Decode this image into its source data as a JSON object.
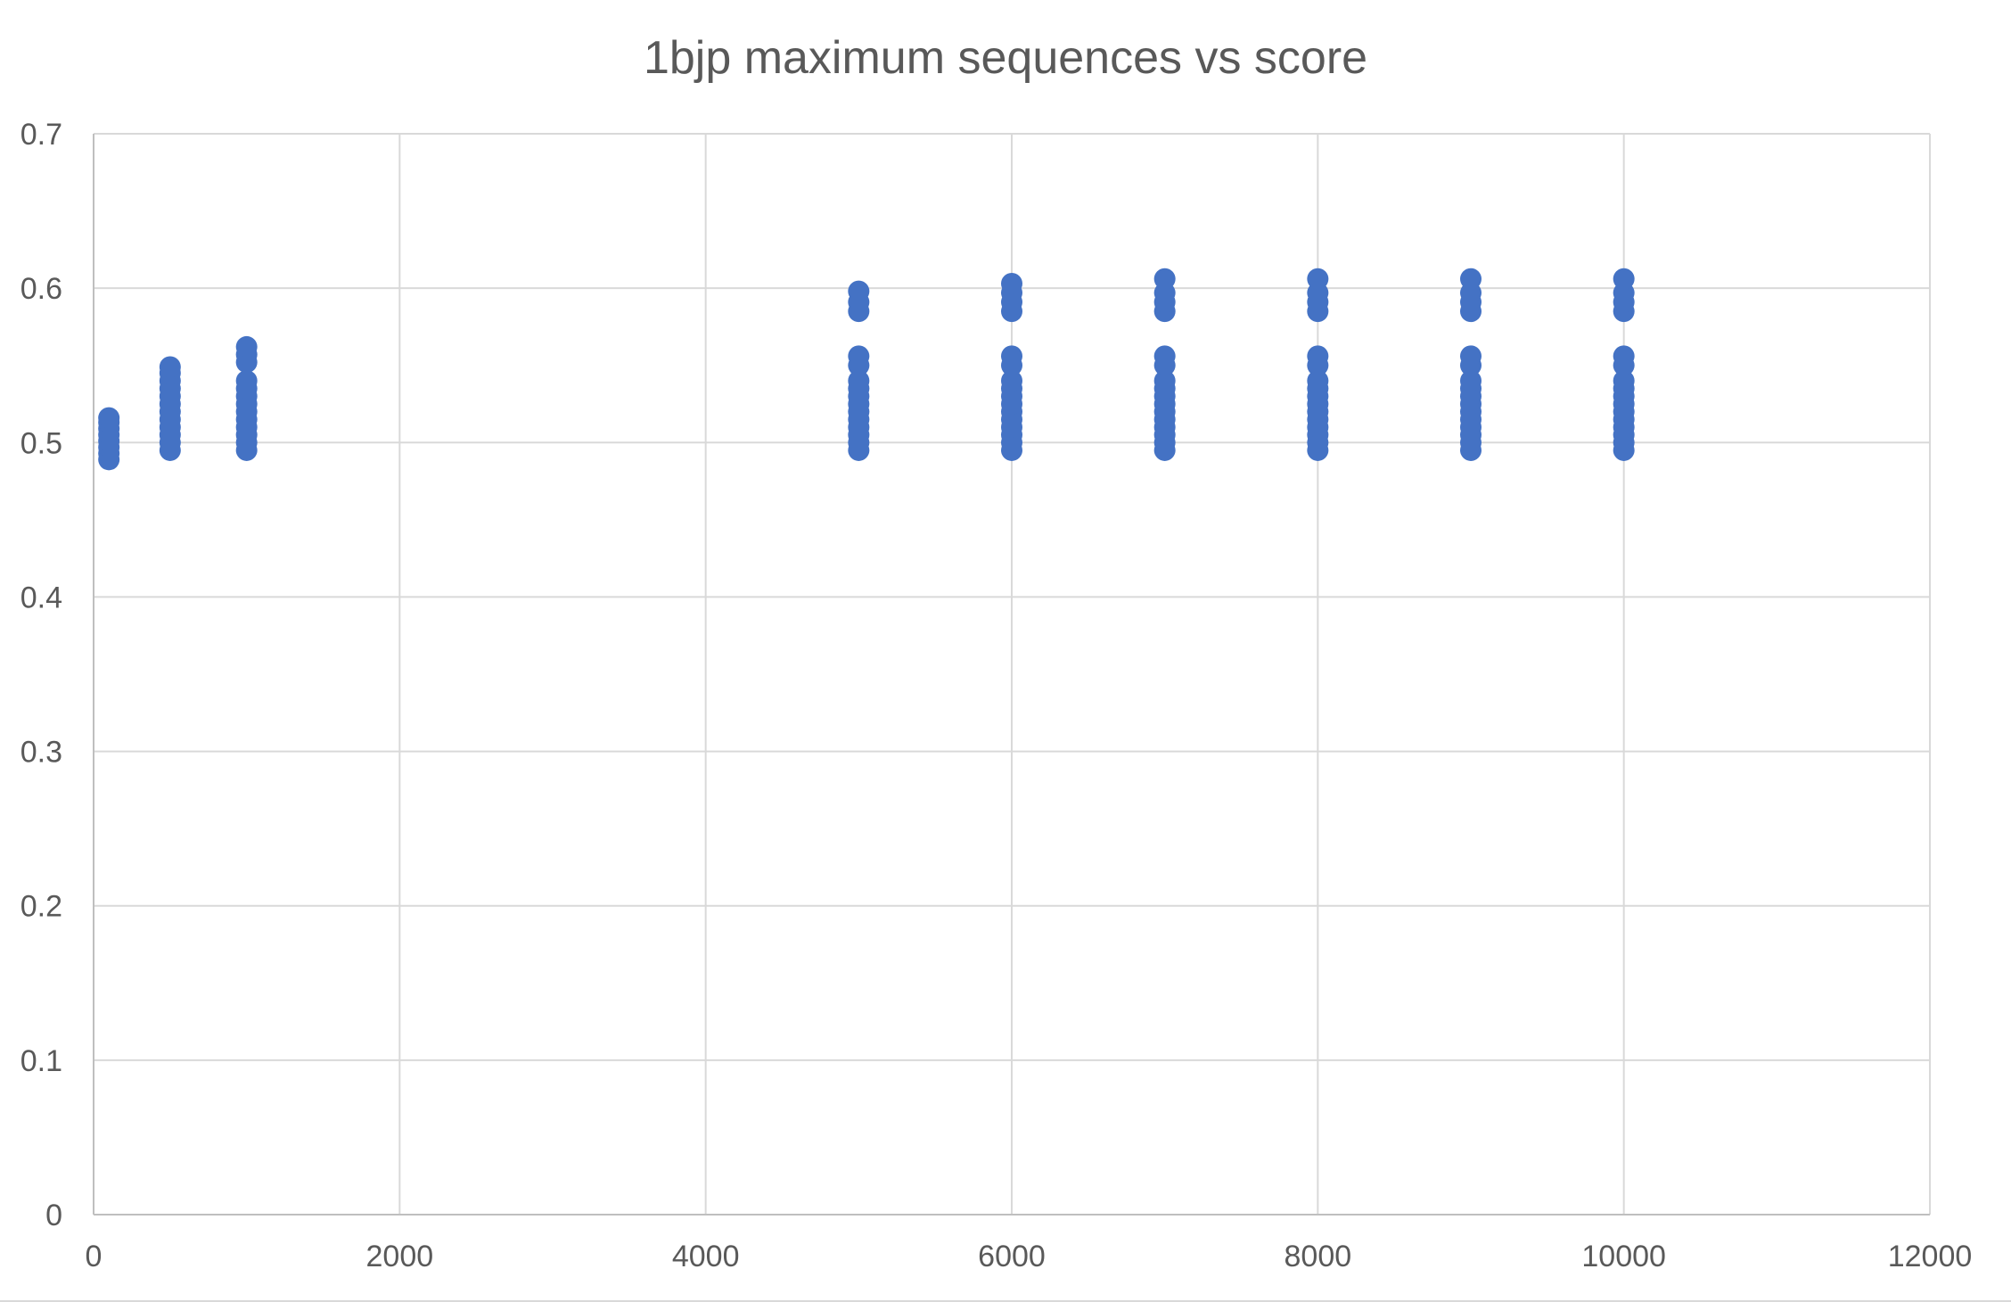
{
  "chart_data": {
    "type": "scatter",
    "title": "1bjp maximum sequences vs score",
    "xlabel": "",
    "ylabel": "",
    "xlim": [
      0,
      12000
    ],
    "ylim": [
      0,
      0.7
    ],
    "x_ticks": [
      "0",
      "2000",
      "4000",
      "6000",
      "8000",
      "10000",
      "12000"
    ],
    "y_ticks": [
      "0",
      "0.1",
      "0.2",
      "0.3",
      "0.4",
      "0.5",
      "0.6",
      "0.7"
    ],
    "x_tick_values": [
      0,
      2000,
      4000,
      6000,
      8000,
      10000,
      12000
    ],
    "y_tick_values": [
      0,
      0.1,
      0.2,
      0.3,
      0.4,
      0.5,
      0.6,
      0.7
    ],
    "grid": true,
    "marker_color": "#4472c4",
    "series": [
      {
        "values": [
          {
            "x": 100,
            "y": 0.489
          },
          {
            "x": 100,
            "y": 0.493
          },
          {
            "x": 100,
            "y": 0.497
          },
          {
            "x": 100,
            "y": 0.501
          },
          {
            "x": 100,
            "y": 0.505
          },
          {
            "x": 100,
            "y": 0.509
          },
          {
            "x": 100,
            "y": 0.513
          },
          {
            "x": 100,
            "y": 0.516
          },
          {
            "x": 500,
            "y": 0.495
          },
          {
            "x": 500,
            "y": 0.5
          },
          {
            "x": 500,
            "y": 0.505
          },
          {
            "x": 500,
            "y": 0.51
          },
          {
            "x": 500,
            "y": 0.515
          },
          {
            "x": 500,
            "y": 0.52
          },
          {
            "x": 500,
            "y": 0.525
          },
          {
            "x": 500,
            "y": 0.53
          },
          {
            "x": 500,
            "y": 0.535
          },
          {
            "x": 500,
            "y": 0.54
          },
          {
            "x": 500,
            "y": 0.545
          },
          {
            "x": 500,
            "y": 0.549
          },
          {
            "x": 1000,
            "y": 0.495
          },
          {
            "x": 1000,
            "y": 0.5
          },
          {
            "x": 1000,
            "y": 0.505
          },
          {
            "x": 1000,
            "y": 0.51
          },
          {
            "x": 1000,
            "y": 0.515
          },
          {
            "x": 1000,
            "y": 0.52
          },
          {
            "x": 1000,
            "y": 0.525
          },
          {
            "x": 1000,
            "y": 0.53
          },
          {
            "x": 1000,
            "y": 0.535
          },
          {
            "x": 1000,
            "y": 0.54
          },
          {
            "x": 1000,
            "y": 0.552
          },
          {
            "x": 1000,
            "y": 0.557
          },
          {
            "x": 1000,
            "y": 0.562
          },
          {
            "x": 5000,
            "y": 0.495
          },
          {
            "x": 5000,
            "y": 0.5
          },
          {
            "x": 5000,
            "y": 0.505
          },
          {
            "x": 5000,
            "y": 0.51
          },
          {
            "x": 5000,
            "y": 0.515
          },
          {
            "x": 5000,
            "y": 0.52
          },
          {
            "x": 5000,
            "y": 0.525
          },
          {
            "x": 5000,
            "y": 0.53
          },
          {
            "x": 5000,
            "y": 0.535
          },
          {
            "x": 5000,
            "y": 0.54
          },
          {
            "x": 5000,
            "y": 0.55
          },
          {
            "x": 5000,
            "y": 0.556
          },
          {
            "x": 5000,
            "y": 0.585
          },
          {
            "x": 5000,
            "y": 0.591
          },
          {
            "x": 5000,
            "y": 0.598
          },
          {
            "x": 6000,
            "y": 0.495
          },
          {
            "x": 6000,
            "y": 0.5
          },
          {
            "x": 6000,
            "y": 0.505
          },
          {
            "x": 6000,
            "y": 0.51
          },
          {
            "x": 6000,
            "y": 0.515
          },
          {
            "x": 6000,
            "y": 0.52
          },
          {
            "x": 6000,
            "y": 0.525
          },
          {
            "x": 6000,
            "y": 0.53
          },
          {
            "x": 6000,
            "y": 0.535
          },
          {
            "x": 6000,
            "y": 0.54
          },
          {
            "x": 6000,
            "y": 0.55
          },
          {
            "x": 6000,
            "y": 0.556
          },
          {
            "x": 6000,
            "y": 0.585
          },
          {
            "x": 6000,
            "y": 0.591
          },
          {
            "x": 6000,
            "y": 0.597
          },
          {
            "x": 6000,
            "y": 0.603
          },
          {
            "x": 7000,
            "y": 0.495
          },
          {
            "x": 7000,
            "y": 0.5
          },
          {
            "x": 7000,
            "y": 0.505
          },
          {
            "x": 7000,
            "y": 0.51
          },
          {
            "x": 7000,
            "y": 0.515
          },
          {
            "x": 7000,
            "y": 0.52
          },
          {
            "x": 7000,
            "y": 0.525
          },
          {
            "x": 7000,
            "y": 0.53
          },
          {
            "x": 7000,
            "y": 0.535
          },
          {
            "x": 7000,
            "y": 0.54
          },
          {
            "x": 7000,
            "y": 0.55
          },
          {
            "x": 7000,
            "y": 0.556
          },
          {
            "x": 7000,
            "y": 0.585
          },
          {
            "x": 7000,
            "y": 0.591
          },
          {
            "x": 7000,
            "y": 0.597
          },
          {
            "x": 7000,
            "y": 0.606
          },
          {
            "x": 8000,
            "y": 0.495
          },
          {
            "x": 8000,
            "y": 0.5
          },
          {
            "x": 8000,
            "y": 0.505
          },
          {
            "x": 8000,
            "y": 0.51
          },
          {
            "x": 8000,
            "y": 0.515
          },
          {
            "x": 8000,
            "y": 0.52
          },
          {
            "x": 8000,
            "y": 0.525
          },
          {
            "x": 8000,
            "y": 0.53
          },
          {
            "x": 8000,
            "y": 0.535
          },
          {
            "x": 8000,
            "y": 0.54
          },
          {
            "x": 8000,
            "y": 0.55
          },
          {
            "x": 8000,
            "y": 0.556
          },
          {
            "x": 8000,
            "y": 0.585
          },
          {
            "x": 8000,
            "y": 0.591
          },
          {
            "x": 8000,
            "y": 0.597
          },
          {
            "x": 8000,
            "y": 0.606
          },
          {
            "x": 9000,
            "y": 0.495
          },
          {
            "x": 9000,
            "y": 0.5
          },
          {
            "x": 9000,
            "y": 0.505
          },
          {
            "x": 9000,
            "y": 0.51
          },
          {
            "x": 9000,
            "y": 0.515
          },
          {
            "x": 9000,
            "y": 0.52
          },
          {
            "x": 9000,
            "y": 0.525
          },
          {
            "x": 9000,
            "y": 0.53
          },
          {
            "x": 9000,
            "y": 0.535
          },
          {
            "x": 9000,
            "y": 0.54
          },
          {
            "x": 9000,
            "y": 0.55
          },
          {
            "x": 9000,
            "y": 0.556
          },
          {
            "x": 9000,
            "y": 0.585
          },
          {
            "x": 9000,
            "y": 0.591
          },
          {
            "x": 9000,
            "y": 0.597
          },
          {
            "x": 9000,
            "y": 0.606
          },
          {
            "x": 10000,
            "y": 0.495
          },
          {
            "x": 10000,
            "y": 0.5
          },
          {
            "x": 10000,
            "y": 0.505
          },
          {
            "x": 10000,
            "y": 0.51
          },
          {
            "x": 10000,
            "y": 0.515
          },
          {
            "x": 10000,
            "y": 0.52
          },
          {
            "x": 10000,
            "y": 0.525
          },
          {
            "x": 10000,
            "y": 0.53
          },
          {
            "x": 10000,
            "y": 0.535
          },
          {
            "x": 10000,
            "y": 0.54
          },
          {
            "x": 10000,
            "y": 0.55
          },
          {
            "x": 10000,
            "y": 0.556
          },
          {
            "x": 10000,
            "y": 0.585
          },
          {
            "x": 10000,
            "y": 0.591
          },
          {
            "x": 10000,
            "y": 0.597
          },
          {
            "x": 10000,
            "y": 0.606
          }
        ]
      }
    ]
  }
}
